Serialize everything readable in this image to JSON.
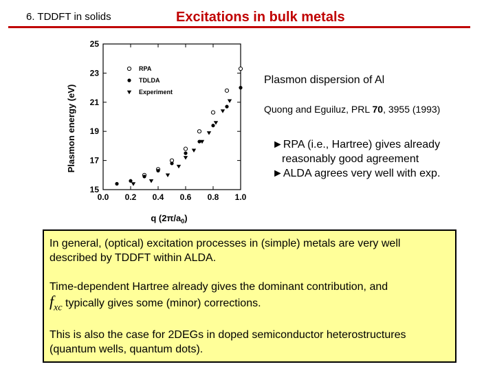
{
  "header": {
    "section": "6. TDDFT in solids",
    "title": "Excitations in bulk metals",
    "accent_color": "#c00000"
  },
  "figure": {
    "ylabel": "Plasmon energy (eV)",
    "xlabel": "q (2π/a",
    "xlabel_sub": "0",
    "xlabel_close": ")",
    "legend": [
      "RPA",
      "TDLDA",
      "Experiment"
    ]
  },
  "chart_data": {
    "type": "scatter",
    "xlim": [
      0.0,
      1.0
    ],
    "ylim": [
      15,
      25
    ],
    "x_ticks": [
      "0.0",
      "0.2",
      "0.4",
      "0.6",
      "0.8",
      "1.0"
    ],
    "y_ticks": [
      "15",
      "17",
      "19",
      "21",
      "23",
      "25"
    ],
    "legend_position": "top-left",
    "series": [
      {
        "name": "RPA",
        "marker": "open-circle",
        "x": [
          0.3,
          0.4,
          0.5,
          0.6,
          0.7,
          0.8,
          0.9,
          1.0
        ],
        "y": [
          16.0,
          16.4,
          17.0,
          17.8,
          19.0,
          20.3,
          21.8,
          23.3
        ]
      },
      {
        "name": "TDLDA",
        "marker": "filled-circle",
        "x": [
          0.1,
          0.2,
          0.3,
          0.4,
          0.5,
          0.6,
          0.7,
          0.8,
          0.9,
          1.0
        ],
        "y": [
          15.4,
          15.6,
          15.9,
          16.3,
          16.8,
          17.5,
          18.3,
          19.4,
          20.7,
          22.0
        ]
      },
      {
        "name": "Experiment",
        "marker": "filled-triangle-down",
        "x": [
          0.22,
          0.35,
          0.47,
          0.55,
          0.6,
          0.66,
          0.72,
          0.77,
          0.82,
          0.87,
          0.92
        ],
        "y": [
          15.4,
          15.6,
          16.0,
          16.6,
          17.2,
          17.7,
          18.3,
          18.9,
          19.6,
          20.4,
          21.1
        ]
      }
    ]
  },
  "side": {
    "heading": "Plasmon dispersion of Al",
    "ref_prefix": "Quong and Eguiluz, PRL ",
    "ref_volume": "70",
    "ref_suffix": ", 3955 (1993)",
    "bullet1_line1": "►RPA (i.e., Hartree) gives already",
    "bullet1_line2": "reasonably good agreement",
    "bullet2": "►ALDA agrees very well with exp."
  },
  "note": {
    "para1": "In general, (optical) excitation processes in (simple) metals are very well described by TDDFT within ALDA.",
    "para2_a": "Time-dependent Hartree already gives the dominant contribution, and",
    "fxc_f": "f",
    "fxc_sub": "xc",
    "para2_b": " typically gives some (minor) corrections.",
    "para3": "This is also the case for 2DEGs in doped semiconductor heterostructures (quantum wells, quantum dots).",
    "background": "#ffff99"
  }
}
